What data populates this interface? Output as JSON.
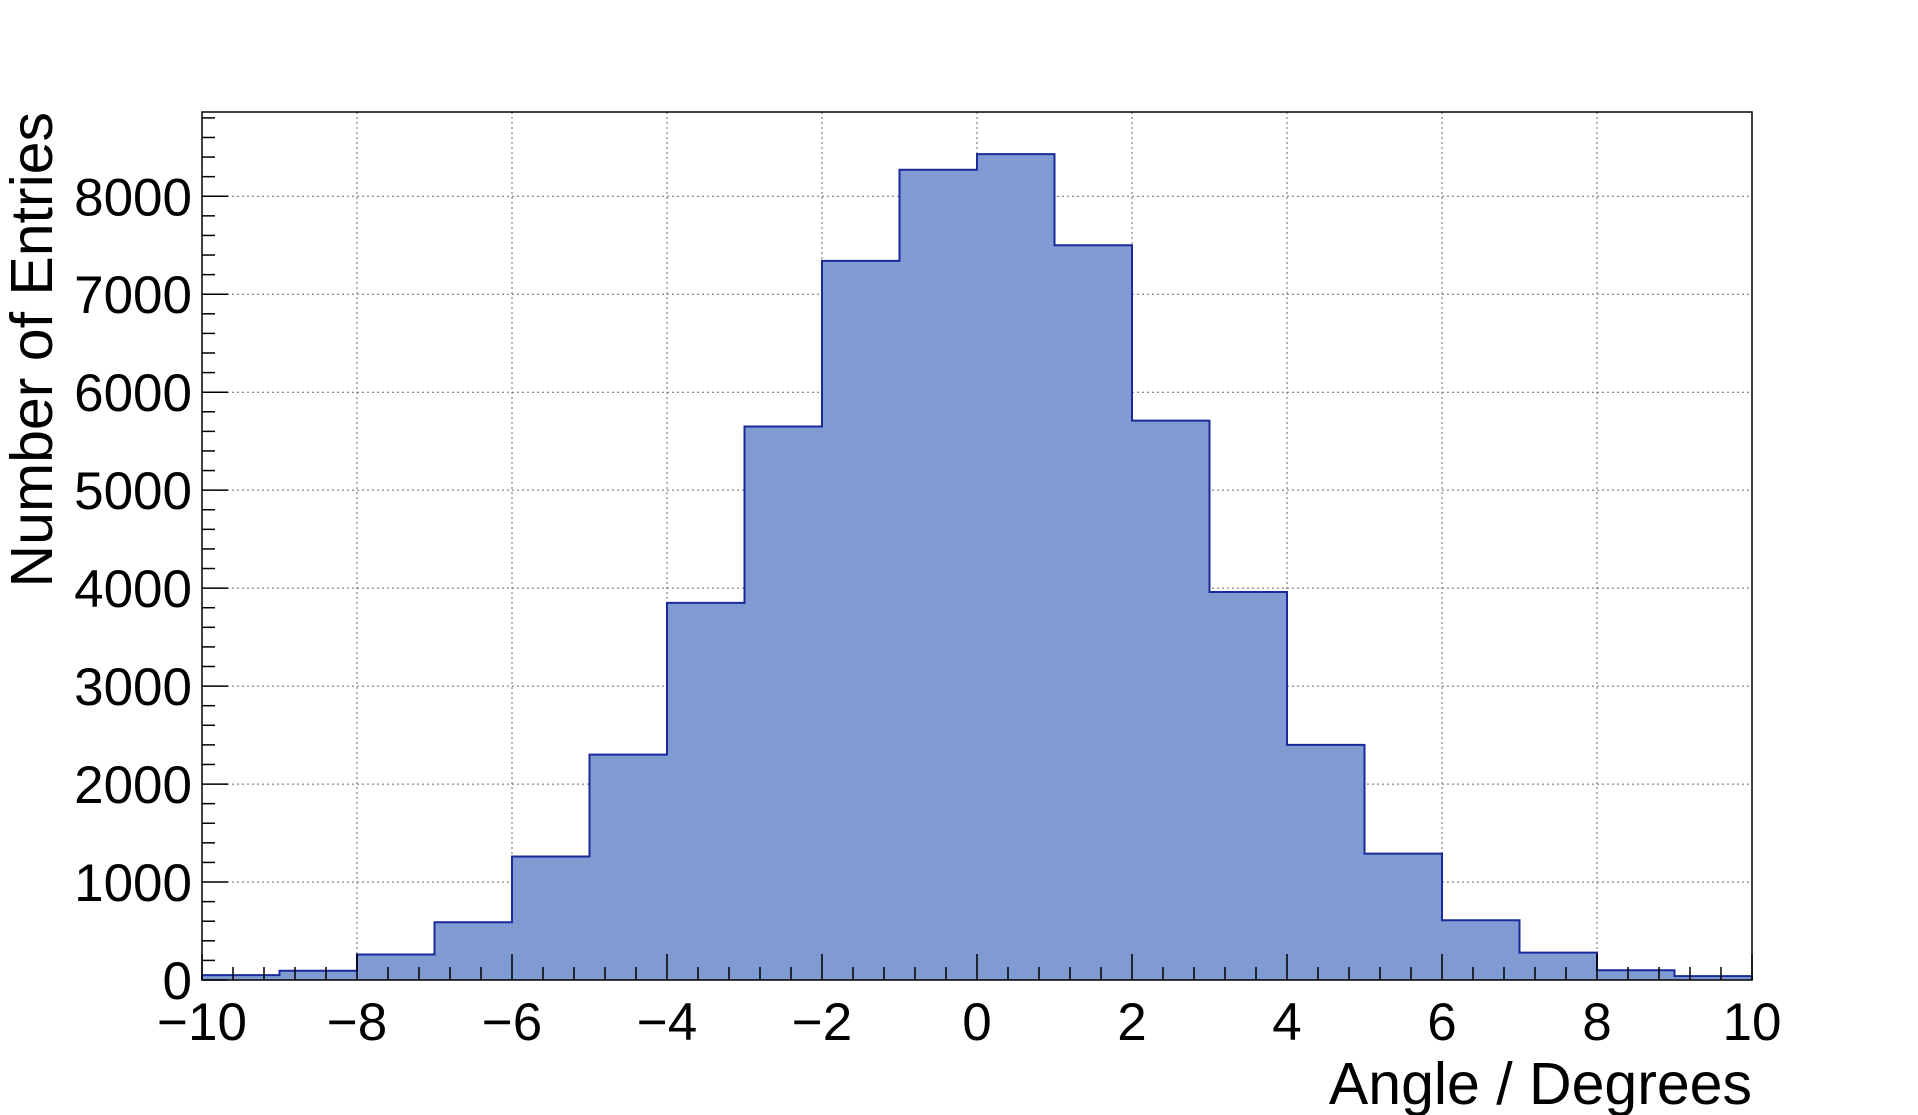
{
  "chart_data": {
    "type": "bar",
    "histogram": true,
    "title": "",
    "xlabel": "Angle / Degrees",
    "ylabel": "Number of Entries",
    "xlim": [
      -10,
      10
    ],
    "ylim": [
      0,
      8860
    ],
    "grid": true,
    "legend": "none",
    "bin_edges": [
      -10,
      -9,
      -8,
      -7,
      -6,
      -5,
      -4,
      -3,
      -2,
      -1,
      0,
      1,
      2,
      3,
      4,
      5,
      6,
      7,
      8,
      9,
      10
    ],
    "values": [
      50,
      95,
      260,
      590,
      1260,
      2300,
      3850,
      5650,
      7340,
      8270,
      8430,
      7500,
      5710,
      3960,
      2400,
      1290,
      610,
      280,
      100,
      40
    ],
    "x_ticks": [
      -10,
      -8,
      -6,
      -4,
      -2,
      0,
      2,
      4,
      6,
      8,
      10
    ],
    "x_tick_labels": [
      "−10",
      "−8",
      "−6",
      "−4",
      "−2",
      "0",
      "2",
      "4",
      "6",
      "8",
      "10"
    ],
    "y_ticks": [
      0,
      1000,
      2000,
      3000,
      4000,
      5000,
      6000,
      7000,
      8000
    ],
    "y_tick_labels": [
      "0",
      "1000",
      "2000",
      "3000",
      "4000",
      "5000",
      "6000",
      "7000",
      "8000"
    ],
    "colors": {
      "fill": "#7f9bd2",
      "line": "#1a2a9a",
      "frame": "#000000",
      "grid": "#666666"
    }
  }
}
